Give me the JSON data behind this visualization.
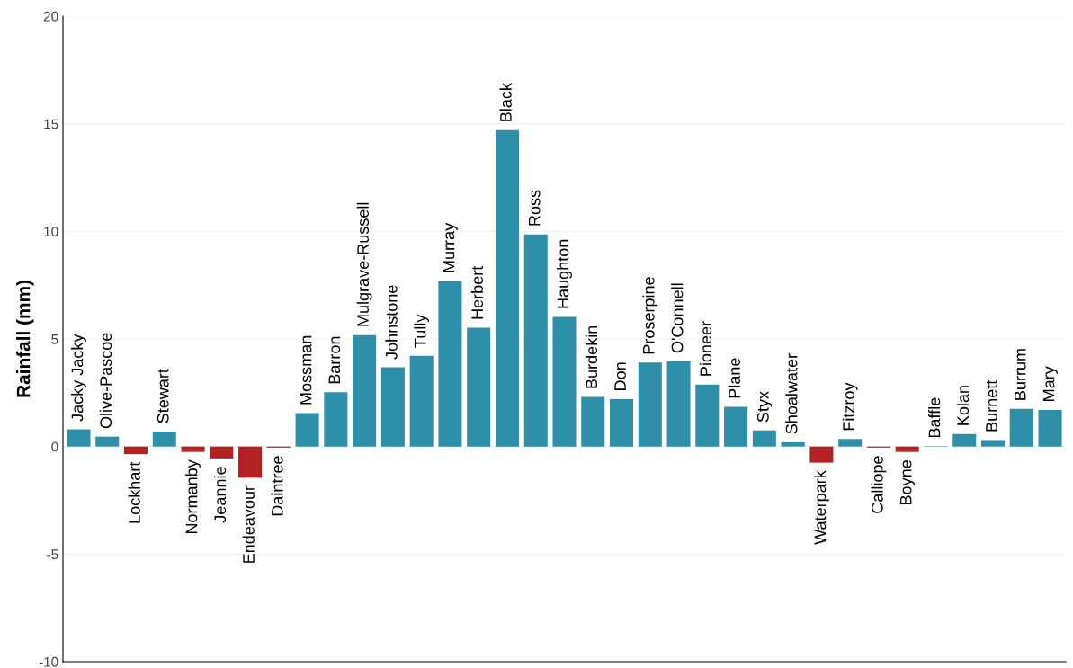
{
  "chart_data": {
    "type": "bar",
    "ylabel": "Rainfall (mm)",
    "categories": [
      "Jacky Jacky",
      "Olive-Pascoe",
      "Lockhart",
      "Stewart",
      "Normanby",
      "Jeannie",
      "Endeavour",
      "Daintree",
      "Mossman",
      "Barron",
      "Mulgrave-Russell",
      "Johnstone",
      "Tully",
      "Murray",
      "Herbert",
      "Black",
      "Ross",
      "Haughton",
      "Burdekin",
      "Don",
      "Proserpine",
      "O'Connell",
      "Pioneer",
      "Plane",
      "Styx",
      "Shoalwater",
      "Waterpark",
      "Fitzroy",
      "Calliope",
      "Boyne",
      "Baffle",
      "Kolan",
      "Burnett",
      "Burrum",
      "Mary"
    ],
    "values": [
      0.8,
      0.46,
      -0.35,
      0.7,
      -0.25,
      -0.55,
      -1.45,
      -0.05,
      1.55,
      2.52,
      5.18,
      3.68,
      4.22,
      7.69,
      5.52,
      14.7,
      9.86,
      6.02,
      2.3,
      2.2,
      3.9,
      3.97,
      2.88,
      1.85,
      0.75,
      0.2,
      -0.75,
      0.35,
      -0.05,
      -0.25,
      0.02,
      0.58,
      0.3,
      1.75,
      1.7
    ],
    "colors": [
      "#2e8fa8",
      "#2e8fa8",
      "#b22222",
      "#2e8fa8",
      "#b22222",
      "#b22222",
      "#b22222",
      "#b22222",
      "#2e8fa8",
      "#2e8fa8",
      "#2e8fa8",
      "#2e8fa8",
      "#2e8fa8",
      "#2e8fa8",
      "#2e8fa8",
      "#2e8fa8",
      "#2e8fa8",
      "#2e8fa8",
      "#2e8fa8",
      "#2e8fa8",
      "#2e8fa8",
      "#2e8fa8",
      "#2e8fa8",
      "#2e8fa8",
      "#2e8fa8",
      "#2e8fa8",
      "#b22222",
      "#2e8fa8",
      "#b22222",
      "#b22222",
      "#2e8fa8",
      "#2e8fa8",
      "#2e8fa8",
      "#2e8fa8",
      "#2e8fa8"
    ],
    "ylim": [
      -10,
      20
    ],
    "yticks": [
      -10,
      -5,
      0,
      5,
      10,
      15,
      20
    ],
    "grid": "y"
  }
}
